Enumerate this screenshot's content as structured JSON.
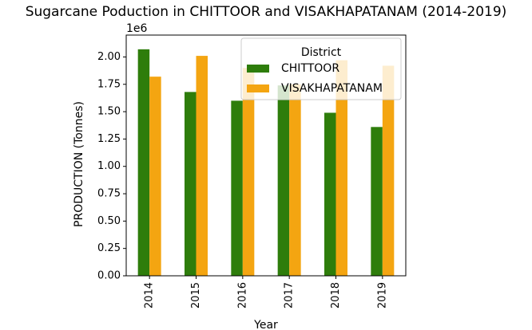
{
  "chart_data": {
    "type": "bar",
    "title": "Sugarcane Poduction in CHITTOOR and VISAKHAPATANAM (2014-2019)",
    "xlabel": "Year",
    "ylabel": "PRODUCTION (Tonnes)",
    "y_offset_label": "1e6",
    "categories": [
      "2014",
      "2015",
      "2016",
      "2017",
      "2018",
      "2019"
    ],
    "series": [
      {
        "name": "CHITTOOR",
        "color": "#2e7d0b",
        "values": [
          2.07,
          1.68,
          1.6,
          1.74,
          1.49,
          1.36
        ]
      },
      {
        "name": "VISAKHAPATANAM",
        "color": "#f4a511",
        "values": [
          1.82,
          2.01,
          1.9,
          1.75,
          1.97,
          1.92
        ]
      }
    ],
    "ylim": [
      0,
      2.2
    ],
    "yticks": [
      "0.00",
      "0.25",
      "0.50",
      "0.75",
      "1.00",
      "1.25",
      "1.50",
      "1.75",
      "2.00"
    ],
    "legend": {
      "title": "District",
      "placement": "top-right"
    },
    "grid": false
  }
}
